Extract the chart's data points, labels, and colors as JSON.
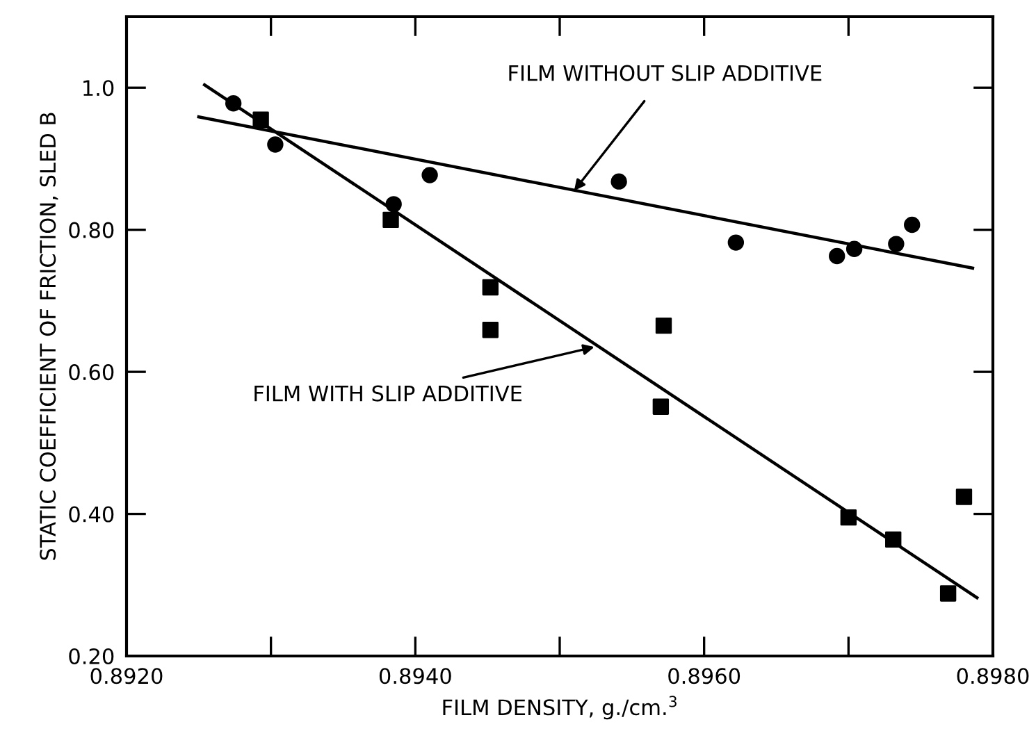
{
  "chart_data": {
    "type": "scatter",
    "xlabel": "FILM DENSITY, g./cm.$^{3}$",
    "ylabel": "STATIC COEFFICIENT OF FRICTION, SLED B",
    "xlim": [
      0.892,
      0.898
    ],
    "ylim": [
      0.2,
      1.1
    ],
    "xticks": [
      {
        "value": 0.892,
        "label": "0.8920"
      },
      {
        "value": 0.893,
        "label": null
      },
      {
        "value": 0.894,
        "label": "0.8940"
      },
      {
        "value": 0.895,
        "label": null
      },
      {
        "value": 0.896,
        "label": "0.8960"
      },
      {
        "value": 0.897,
        "label": null
      },
      {
        "value": 0.898,
        "label": "0.8980"
      }
    ],
    "yticks": [
      {
        "value": 0.2,
        "label": "0.20"
      },
      {
        "value": 0.4,
        "label": "0.40"
      },
      {
        "value": 0.6,
        "label": "0.60"
      },
      {
        "value": 0.8,
        "label": "0.80"
      },
      {
        "value": 1.0,
        "label": "1.0"
      }
    ],
    "grid": false,
    "legend": false,
    "series": [
      {
        "marker": "circle",
        "color": "#000000",
        "x": [
          0.89274,
          0.89303,
          0.89385,
          0.8941,
          0.89541,
          0.89622,
          0.89692,
          0.89704,
          0.89733,
          0.89744
        ],
        "values": [
          0.978,
          0.92,
          0.836,
          0.877,
          0.868,
          0.782,
          0.763,
          0.773,
          0.78,
          0.807
        ]
      },
      {
        "marker": "square",
        "color": "#000000",
        "x": [
          0.89293,
          0.89383,
          0.89452,
          0.89452,
          0.89572,
          0.8957,
          0.897,
          0.89731,
          0.89769,
          0.8978
        ],
        "values": [
          0.955,
          0.814,
          0.719,
          0.659,
          0.665,
          0.551,
          0.395,
          0.364,
          0.288,
          0.424
        ]
      },
      {
        "type": "line",
        "line_style": "solid",
        "color": "#000000",
        "x": [
          0.8925,
          0.89786
        ],
        "values": [
          0.959,
          0.746
        ]
      },
      {
        "type": "line",
        "line_style": "solid",
        "color": "#000000",
        "x": [
          0.89254,
          0.89789
        ],
        "values": [
          1.004,
          0.282
        ]
      }
    ],
    "annotations": [
      {
        "text": "FILM WITHOUT SLIP ADDITIVE",
        "x": 0.8951,
        "y": 0.855
      },
      {
        "text": "FILM WITH SLIP ADDITIVE",
        "x": 0.89524,
        "y": 0.635
      }
    ]
  }
}
